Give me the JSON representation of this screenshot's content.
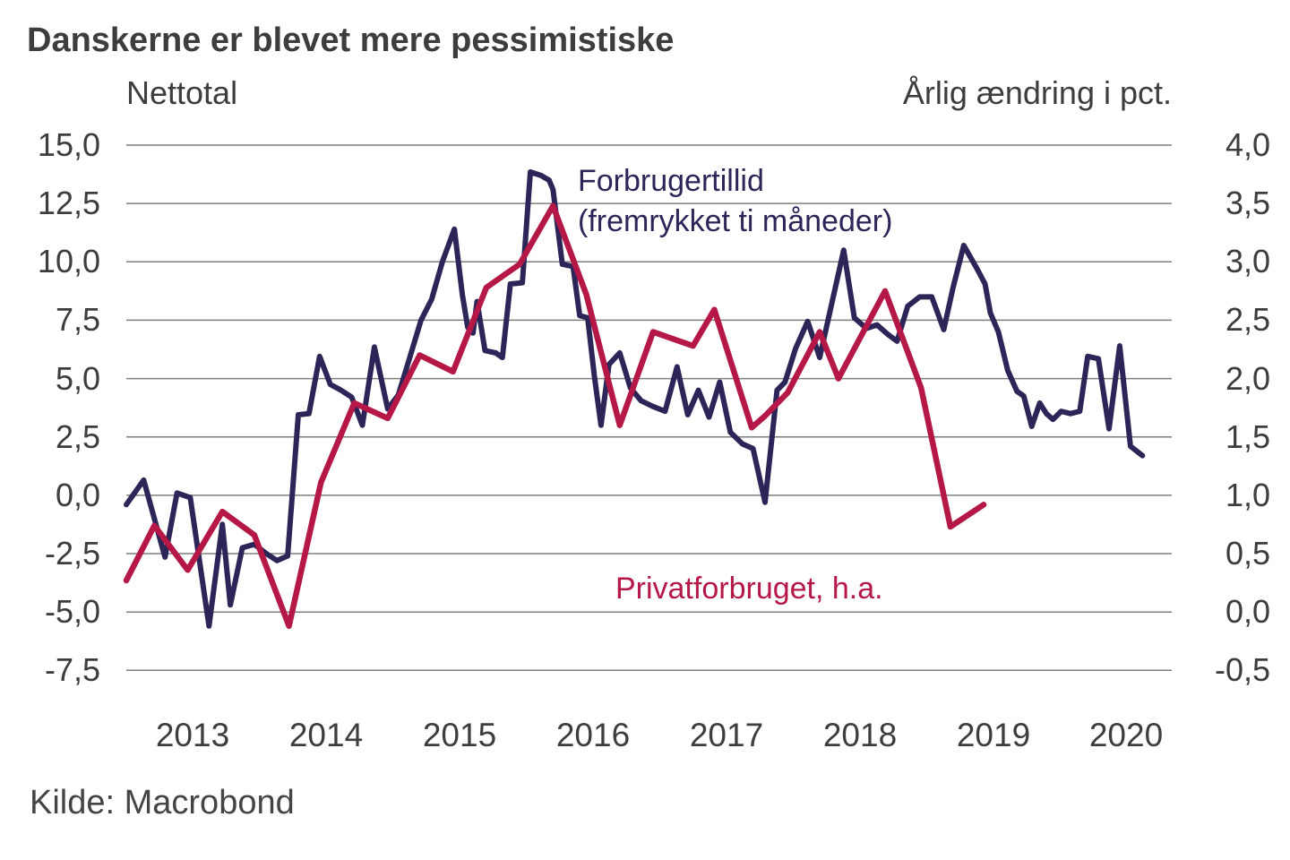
{
  "title": "Danskerne er blevet mere pessimistiske",
  "source": "Kilde: Macrobond",
  "chart_data": {
    "type": "line",
    "title": "Danskerne er blevet mere pessimistiske",
    "grid": true,
    "grid_color": "#7f7f7f",
    "legend_position": "inline-annotations",
    "x_axis": {
      "min": 2013.0,
      "max": 2020.84,
      "years": [
        "2013",
        "2014",
        "2015",
        "2016",
        "2017",
        "2018",
        "2019",
        "2020"
      ]
    },
    "left_axis": {
      "header": "Nettotal",
      "min": -7.5,
      "max": 15.0,
      "ticks": [
        {
          "label": "15,0",
          "value": 15.0
        },
        {
          "label": "12,5",
          "value": 12.5
        },
        {
          "label": "10,0",
          "value": 10.0
        },
        {
          "label": "7,5",
          "value": 7.5
        },
        {
          "label": "5,0",
          "value": 5.0
        },
        {
          "label": "2,5",
          "value": 2.5
        },
        {
          "label": "0,0",
          "value": 0.0
        },
        {
          "label": "-2,5",
          "value": -2.5
        },
        {
          "label": "-5,0",
          "value": -5.0
        },
        {
          "label": "-7,5",
          "value": -7.5
        }
      ]
    },
    "right_axis": {
      "header": "Årlig ændring i pct.",
      "min": -0.5,
      "max": 4.0,
      "ticks": [
        {
          "label": "4,0",
          "value": 4.0
        },
        {
          "label": "3,5",
          "value": 3.5
        },
        {
          "label": "3,0",
          "value": 3.0
        },
        {
          "label": "2,5",
          "value": 2.5
        },
        {
          "label": "2,0",
          "value": 2.0
        },
        {
          "label": "1,5",
          "value": 1.5
        },
        {
          "label": "1,0",
          "value": 1.0
        },
        {
          "label": "0,5",
          "value": 0.5
        },
        {
          "label": "0,0",
          "value": 0.0
        },
        {
          "label": "-0,5",
          "value": -0.5
        }
      ]
    },
    "series": [
      {
        "id": "forbrugertillid",
        "name": "Forbrugertillid (fremrykket ti måneder)",
        "annotation": {
          "line1": "Forbrugertillid",
          "line2": "(fremrykket ti måneder)"
        },
        "axis": "left",
        "unit": "nettotal",
        "color": "#2b2558",
        "width": 6,
        "points": [
          [
            2013.0,
            -0.4
          ],
          [
            2013.13,
            0.65
          ],
          [
            2013.29,
            -2.65
          ],
          [
            2013.38,
            0.1
          ],
          [
            2013.48,
            -0.1
          ],
          [
            2013.62,
            -5.6
          ],
          [
            2013.72,
            -1.25
          ],
          [
            2013.78,
            -4.7
          ],
          [
            2013.87,
            -2.25
          ],
          [
            2013.96,
            -2.1
          ],
          [
            2014.05,
            -2.5
          ],
          [
            2014.13,
            -2.8
          ],
          [
            2014.21,
            -2.6
          ],
          [
            2014.29,
            3.45
          ],
          [
            2014.37,
            3.5
          ],
          [
            2014.45,
            5.95
          ],
          [
            2014.53,
            4.75
          ],
          [
            2014.61,
            4.5
          ],
          [
            2014.69,
            4.2
          ],
          [
            2014.77,
            3.0
          ],
          [
            2014.86,
            6.35
          ],
          [
            2014.96,
            3.7
          ],
          [
            2015.04,
            4.3
          ],
          [
            2015.12,
            5.8
          ],
          [
            2015.21,
            7.5
          ],
          [
            2015.29,
            8.4
          ],
          [
            2015.37,
            10.0
          ],
          [
            2015.46,
            11.4
          ],
          [
            2015.52,
            8.6
          ],
          [
            2015.56,
            7.2
          ],
          [
            2015.6,
            6.95
          ],
          [
            2015.63,
            8.3
          ],
          [
            2015.69,
            6.2
          ],
          [
            2015.77,
            6.1
          ],
          [
            2015.82,
            5.9
          ],
          [
            2015.88,
            9.05
          ],
          [
            2015.97,
            9.1
          ],
          [
            2016.03,
            13.85
          ],
          [
            2016.11,
            13.7
          ],
          [
            2016.17,
            13.5
          ],
          [
            2016.2,
            13.1
          ],
          [
            2016.27,
            9.9
          ],
          [
            2016.35,
            9.8
          ],
          [
            2016.4,
            7.7
          ],
          [
            2016.46,
            7.6
          ],
          [
            2016.51,
            5.1
          ],
          [
            2016.56,
            3.0
          ],
          [
            2016.62,
            5.6
          ],
          [
            2016.7,
            6.1
          ],
          [
            2016.78,
            4.6
          ],
          [
            2016.86,
            4.05
          ],
          [
            2016.95,
            3.8
          ],
          [
            2017.04,
            3.6
          ],
          [
            2017.13,
            5.5
          ],
          [
            2017.21,
            3.45
          ],
          [
            2017.29,
            4.5
          ],
          [
            2017.37,
            3.35
          ],
          [
            2017.45,
            4.85
          ],
          [
            2017.53,
            2.7
          ],
          [
            2017.62,
            2.2
          ],
          [
            2017.7,
            2.0
          ],
          [
            2017.79,
            -0.3
          ],
          [
            2017.88,
            4.5
          ],
          [
            2017.94,
            4.85
          ],
          [
            2018.02,
            6.3
          ],
          [
            2018.11,
            7.45
          ],
          [
            2018.2,
            5.9
          ],
          [
            2018.29,
            8.2
          ],
          [
            2018.38,
            10.5
          ],
          [
            2018.46,
            7.6
          ],
          [
            2018.55,
            7.15
          ],
          [
            2018.63,
            7.3
          ],
          [
            2018.71,
            6.9
          ],
          [
            2018.78,
            6.6
          ],
          [
            2018.86,
            8.1
          ],
          [
            2018.95,
            8.5
          ],
          [
            2019.04,
            8.5
          ],
          [
            2019.13,
            7.1
          ],
          [
            2019.2,
            8.9
          ],
          [
            2019.28,
            10.7
          ],
          [
            2019.38,
            9.7
          ],
          [
            2019.44,
            9.05
          ],
          [
            2019.48,
            7.8
          ],
          [
            2019.54,
            7.0
          ],
          [
            2019.61,
            5.35
          ],
          [
            2019.68,
            4.45
          ],
          [
            2019.73,
            4.25
          ],
          [
            2019.79,
            2.95
          ],
          [
            2019.85,
            3.95
          ],
          [
            2019.9,
            3.5
          ],
          [
            2019.95,
            3.25
          ],
          [
            2020.01,
            3.6
          ],
          [
            2020.08,
            3.5
          ],
          [
            2020.15,
            3.6
          ],
          [
            2020.21,
            5.95
          ],
          [
            2020.29,
            5.85
          ],
          [
            2020.37,
            2.85
          ],
          [
            2020.45,
            6.4
          ],
          [
            2020.53,
            2.1
          ],
          [
            2020.62,
            1.7
          ]
        ]
      },
      {
        "id": "privatforbruget",
        "name": "Privatforbruget, h.a.",
        "annotation": {
          "line1": "Privatforbruget, h.a."
        },
        "axis": "right",
        "unit": "pct",
        "color": "#b51747",
        "width": 6.5,
        "points": [
          [
            2013.0,
            0.27
          ],
          [
            2013.21,
            0.74
          ],
          [
            2013.46,
            0.36
          ],
          [
            2013.72,
            0.86
          ],
          [
            2013.96,
            0.66
          ],
          [
            2014.22,
            -0.12
          ],
          [
            2014.46,
            1.11
          ],
          [
            2014.71,
            1.79
          ],
          [
            2014.96,
            1.66
          ],
          [
            2015.2,
            2.2
          ],
          [
            2015.45,
            2.06
          ],
          [
            2015.7,
            2.78
          ],
          [
            2015.95,
            2.98
          ],
          [
            2016.2,
            3.48
          ],
          [
            2016.45,
            2.72
          ],
          [
            2016.7,
            1.6
          ],
          [
            2016.95,
            2.4
          ],
          [
            2017.25,
            2.28
          ],
          [
            2017.41,
            2.59
          ],
          [
            2017.69,
            1.58
          ],
          [
            2017.79,
            1.68
          ],
          [
            2017.96,
            1.88
          ],
          [
            2018.2,
            2.4
          ],
          [
            2018.34,
            2.0
          ],
          [
            2018.69,
            2.75
          ],
          [
            2018.96,
            1.92
          ],
          [
            2019.18,
            0.73
          ],
          [
            2019.43,
            0.92
          ]
        ]
      }
    ]
  }
}
